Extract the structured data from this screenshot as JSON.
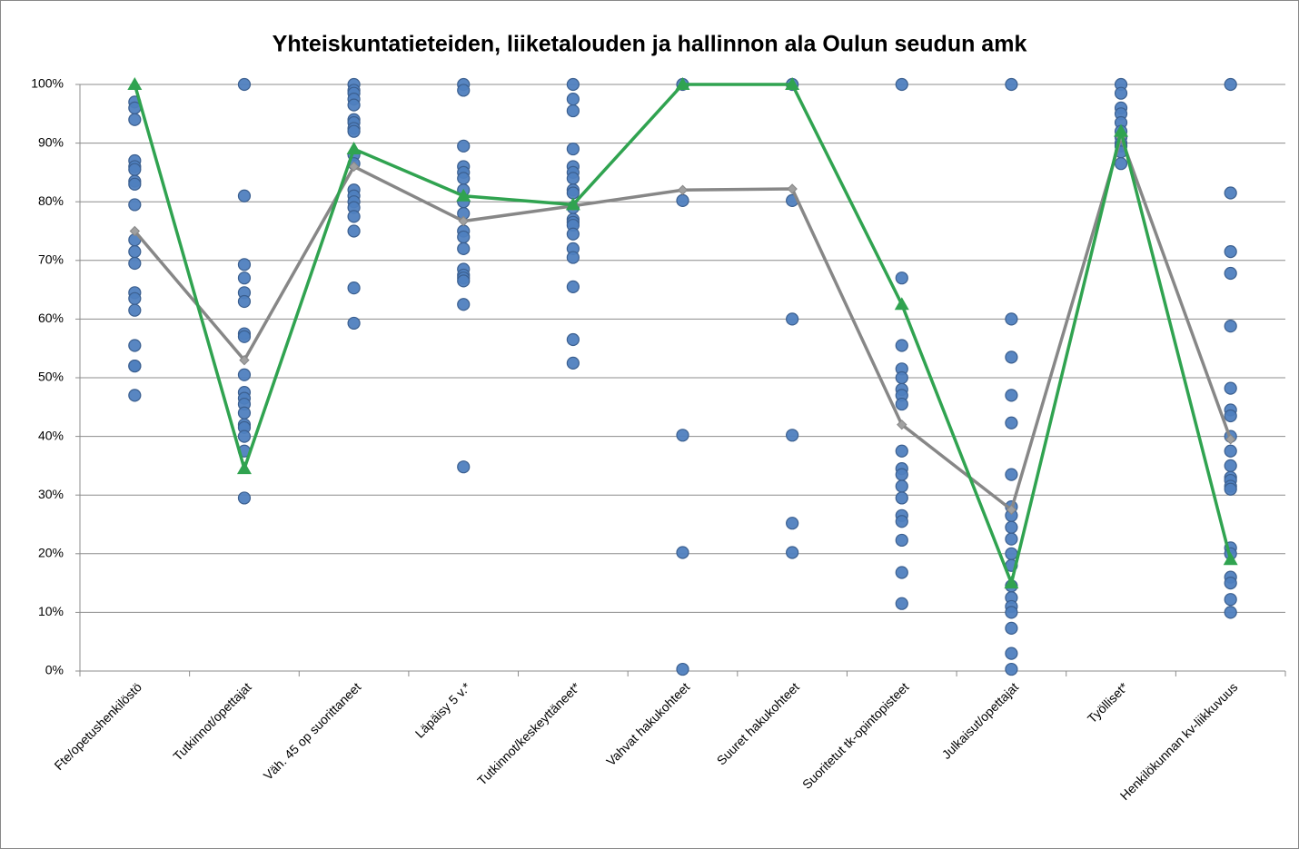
{
  "chart_data": {
    "type": "dot-line",
    "title": "Yhteiskuntatieteiden, liiketalouden ja hallinnon ala Oulun seudun amk",
    "categories": [
      "Fte/opetushenkilöstö",
      "Tutkinnot/opettajat",
      "Väh. 45 op suorittaneet",
      "Läpäisy 5 v.*",
      "Tutkinnot/keskeyttäneet*",
      "Vahvat hakukohteet",
      "Suuret hakukohteet",
      "Suoritetut tk-opintopisteet",
      "Julkaisut/opettajat",
      "Työlliset*",
      "Henkilökunnan kv-liikkuvuus"
    ],
    "ylim": [
      0,
      100
    ],
    "yticks": [
      {
        "value": 0,
        "label": "0%"
      },
      {
        "value": 10,
        "label": "10%"
      },
      {
        "value": 20,
        "label": "20%"
      },
      {
        "value": 30,
        "label": "30%"
      },
      {
        "value": 40,
        "label": "40%"
      },
      {
        "value": 50,
        "label": "50%"
      },
      {
        "value": 60,
        "label": "60%"
      },
      {
        "value": 70,
        "label": "70%"
      },
      {
        "value": 80,
        "label": "80%"
      },
      {
        "value": 90,
        "label": "90%"
      },
      {
        "value": 100,
        "label": "100%"
      }
    ],
    "grid": true,
    "series": [
      {
        "style": "dots",
        "color": "#4f7fbf",
        "values": [
          [
            97,
            96,
            94,
            87,
            86,
            85.5,
            83.5,
            83,
            79.5,
            73.5,
            71.5,
            69.5,
            64.5,
            63.5,
            61.5,
            55.5,
            52,
            52,
            47
          ],
          [
            100,
            81,
            69.3,
            67,
            64.5,
            63,
            57.5,
            57,
            50.5,
            47.5,
            46.5,
            45.5,
            44,
            42,
            41.5,
            40,
            37.5,
            29.5
          ],
          [
            100,
            99,
            98.5,
            97.5,
            96.5,
            94,
            93.5,
            92.5,
            92,
            88,
            86.5,
            82,
            81,
            80,
            79,
            77.5,
            75,
            65.3,
            59.3
          ],
          [
            100,
            99,
            89.5,
            86,
            85,
            84,
            82,
            80,
            78,
            75,
            74,
            72,
            68.5,
            67.5,
            67,
            66.5,
            62.5,
            34.8
          ],
          [
            100,
            97.5,
            95.5,
            89,
            86,
            85,
            84,
            82,
            81.5,
            79,
            77,
            76.5,
            76,
            74.5,
            72,
            70.5,
            65.5,
            56.5,
            52.5
          ],
          [
            100,
            80.2,
            40.2,
            20.2,
            0.3
          ],
          [
            100,
            80.2,
            60,
            40.2,
            25.2,
            20.2
          ],
          [
            100,
            67,
            55.5,
            51.5,
            50,
            48,
            47,
            45.5,
            37.5,
            34.5,
            33.5,
            31.5,
            29.5,
            26.5,
            25.5,
            22.3,
            16.8,
            11.5
          ],
          [
            100,
            60,
            53.5,
            47,
            42.3,
            33.5,
            28,
            26.5,
            24.5,
            22.5,
            20,
            18,
            14.5,
            12.5,
            11,
            10,
            7.3,
            3,
            0.3
          ],
          [
            100,
            98.5,
            96,
            95,
            93.5,
            92,
            91,
            90,
            89.5,
            88.5,
            86.5
          ],
          [
            100,
            81.5,
            71.5,
            67.8,
            58.8,
            48.2,
            44.5,
            43.5,
            40,
            37.5,
            35,
            33,
            32.5,
            31.5,
            31,
            21,
            20,
            16,
            15,
            12.2,
            10
          ]
        ]
      },
      {
        "style": "line",
        "marker": "diamond",
        "color": "#878787",
        "values": [
          75,
          53,
          86,
          76.7,
          79.3,
          82,
          82.2,
          42,
          27.5,
          91,
          39.5
        ]
      },
      {
        "style": "line",
        "marker": "triangle",
        "color": "#30a350",
        "values": [
          100,
          34.5,
          89,
          81,
          79.5,
          100,
          100,
          62.5,
          15,
          92,
          19
        ]
      }
    ]
  }
}
